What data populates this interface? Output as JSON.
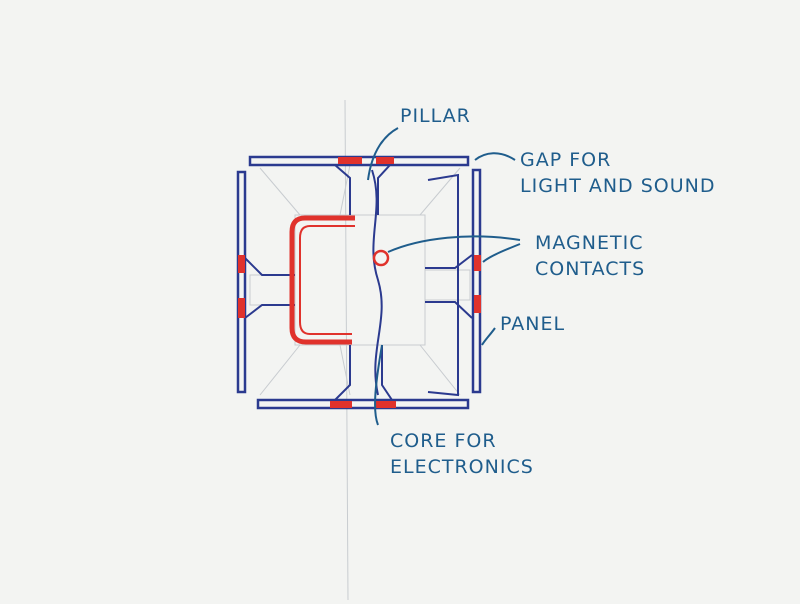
{
  "labels": {
    "pillar": "PILLAR",
    "gap_line1": "GAP FOR",
    "gap_line2": "LIGHT AND SOUND",
    "magnetic_line1": "MAGNETIC",
    "magnetic_line2": "CONTACTS",
    "panel": "PANEL",
    "core_line1": "CORE FOR",
    "core_line2": "ELECTRONICS"
  },
  "colors": {
    "paper": "#f3f4f2",
    "panel_ink": "#2b3a8f",
    "magnet_red": "#e0322c",
    "label_ink": "#1f5d8c",
    "pencil": "#c8ccd0"
  }
}
